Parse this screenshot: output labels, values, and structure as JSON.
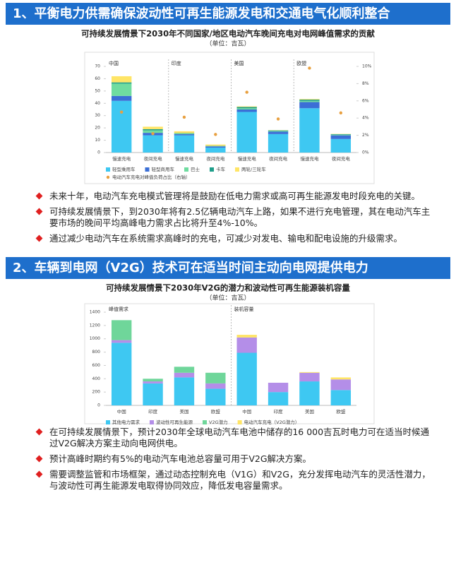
{
  "sections": [
    {
      "header": "1、平衡电力供需确保波动性可再生能源发电和交通电气化顺利整合",
      "bullets": [
        "未来十年，电动汽车充电模式管理将是鼓励在低电力需求或高可再生能源发电时段充电的关键。",
        "可持续发展情景下，到2030年将有2.5亿辆电动汽车上路，如果不进行充电管理，其在电动汽车主要市场的晚间平均高峰电力需求占比将升至4%-10%。",
        "通过减少电动汽车在系统需求高峰时的充电，可减少对发电、输电和配电设施的升级需求。"
      ]
    },
    {
      "header": "2、车辆到电网（V2G）技术可在适当时间主动向电网提供电力",
      "bullets": [
        "在可持续发展情景下，预计2030年全球电动汽车电池中储存的16 000吉瓦时电力可在适当时候通过V2G解决方案主动向电网供电。",
        "预计高峰时期约有5%的电动汽车电池总容量可用于V2G解决方案。",
        "需要调整监管和市场框架，通过动态控制充电（V1G）和V2G，充分发挥电动汽车的灵活性潜力，与波动性可再生能源发电取得协同效应，降低发电容量需求。"
      ]
    }
  ],
  "chart_data": [
    {
      "type": "bar",
      "stacked": true,
      "title": "可持续发展情景下2030年不同国家/地区电动汽车晚间充电对电网峰值需求的贡献",
      "subtitle": "（单位：吉瓦）",
      "group_labels": [
        "中国",
        "印度",
        "美国",
        "欧盟"
      ],
      "categories": [
        "慢速充电",
        "夜间充电",
        "慢速充电",
        "夜间充电",
        "慢速充电",
        "夜间充电",
        "慢速充电",
        "夜间充电"
      ],
      "series": [
        {
          "name": "轻型乘用车",
          "color": "#3ec8f2",
          "values": [
            42,
            14,
            14,
            4,
            33,
            15,
            36,
            11
          ]
        },
        {
          "name": "轻型商用车",
          "color": "#3b6fd6",
          "values": [
            4,
            2,
            1,
            1,
            2,
            2,
            5,
            3
          ]
        },
        {
          "name": "巴士",
          "color": "#6fdca0",
          "values": [
            10,
            2,
            0.5,
            0.3,
            1,
            0.5,
            1,
            0.5
          ]
        },
        {
          "name": "卡车",
          "color": "#1f9e8a",
          "values": [
            1,
            1,
            0.3,
            0.2,
            1,
            0.5,
            1,
            0.5
          ]
        },
        {
          "name": "两轮/三轮车",
          "color": "#ffe566",
          "values": [
            5,
            2,
            1.5,
            1,
            0.5,
            0.2,
            0.5,
            0.2
          ]
        },
        {
          "name": "电动汽车充电对峰值负荷占比（右轴）",
          "color": "#e8a040",
          "type": "scatter",
          "axis": "y2",
          "values": [
            4.7,
            2.2,
            4.1,
            2.1,
            7,
            3.9,
            9.8,
            4.6
          ]
        }
      ],
      "ylim": [
        0,
        70
      ],
      "yticks": [
        0,
        10,
        20,
        30,
        40,
        50,
        60,
        70
      ],
      "y2lim": [
        0,
        10
      ],
      "y2ticks": [
        {
          "value": 0,
          "label": "0%"
        },
        {
          "value": 2,
          "label": "2%"
        },
        {
          "value": 4,
          "label": "4%"
        },
        {
          "value": 6,
          "label": "6%"
        },
        {
          "value": 8,
          "label": "8%"
        },
        {
          "value": 10,
          "label": "10%"
        }
      ],
      "grid": false
    },
    {
      "type": "bar",
      "stacked": true,
      "title": "可持续发展情景下2030年V2G的潜力和波动性可再生能源装机容量",
      "subtitle": "（单位：吉瓦）",
      "group_labels": [
        "峰值需求",
        "装机容量"
      ],
      "categories": [
        "中国",
        "印度",
        "美国",
        "欧盟",
        "中国",
        "印度",
        "美国",
        "欧盟"
      ],
      "series": [
        {
          "name": "其他电力需求",
          "color": "#3ec8f2",
          "values": [
            940,
            330,
            420,
            250,
            790,
            200,
            360,
            230
          ]
        },
        {
          "name": "波动性可再生能源",
          "color": "#b48ee8",
          "values": [
            40,
            30,
            70,
            80,
            230,
            140,
            130,
            160
          ]
        },
        {
          "name": "V2G潜力",
          "color": "#6fd69a",
          "values": [
            300,
            40,
            90,
            160,
            0,
            0,
            0,
            0
          ]
        },
        {
          "name": "电动汽车充电（V2G潜力）",
          "color": "#ffe566",
          "values": [
            0,
            0,
            0,
            0,
            40,
            0,
            10,
            30
          ]
        }
      ],
      "ylim": [
        0,
        1400
      ],
      "yticks": [
        0,
        200,
        400,
        600,
        800,
        1000,
        1200,
        1400
      ],
      "grid": false
    }
  ]
}
